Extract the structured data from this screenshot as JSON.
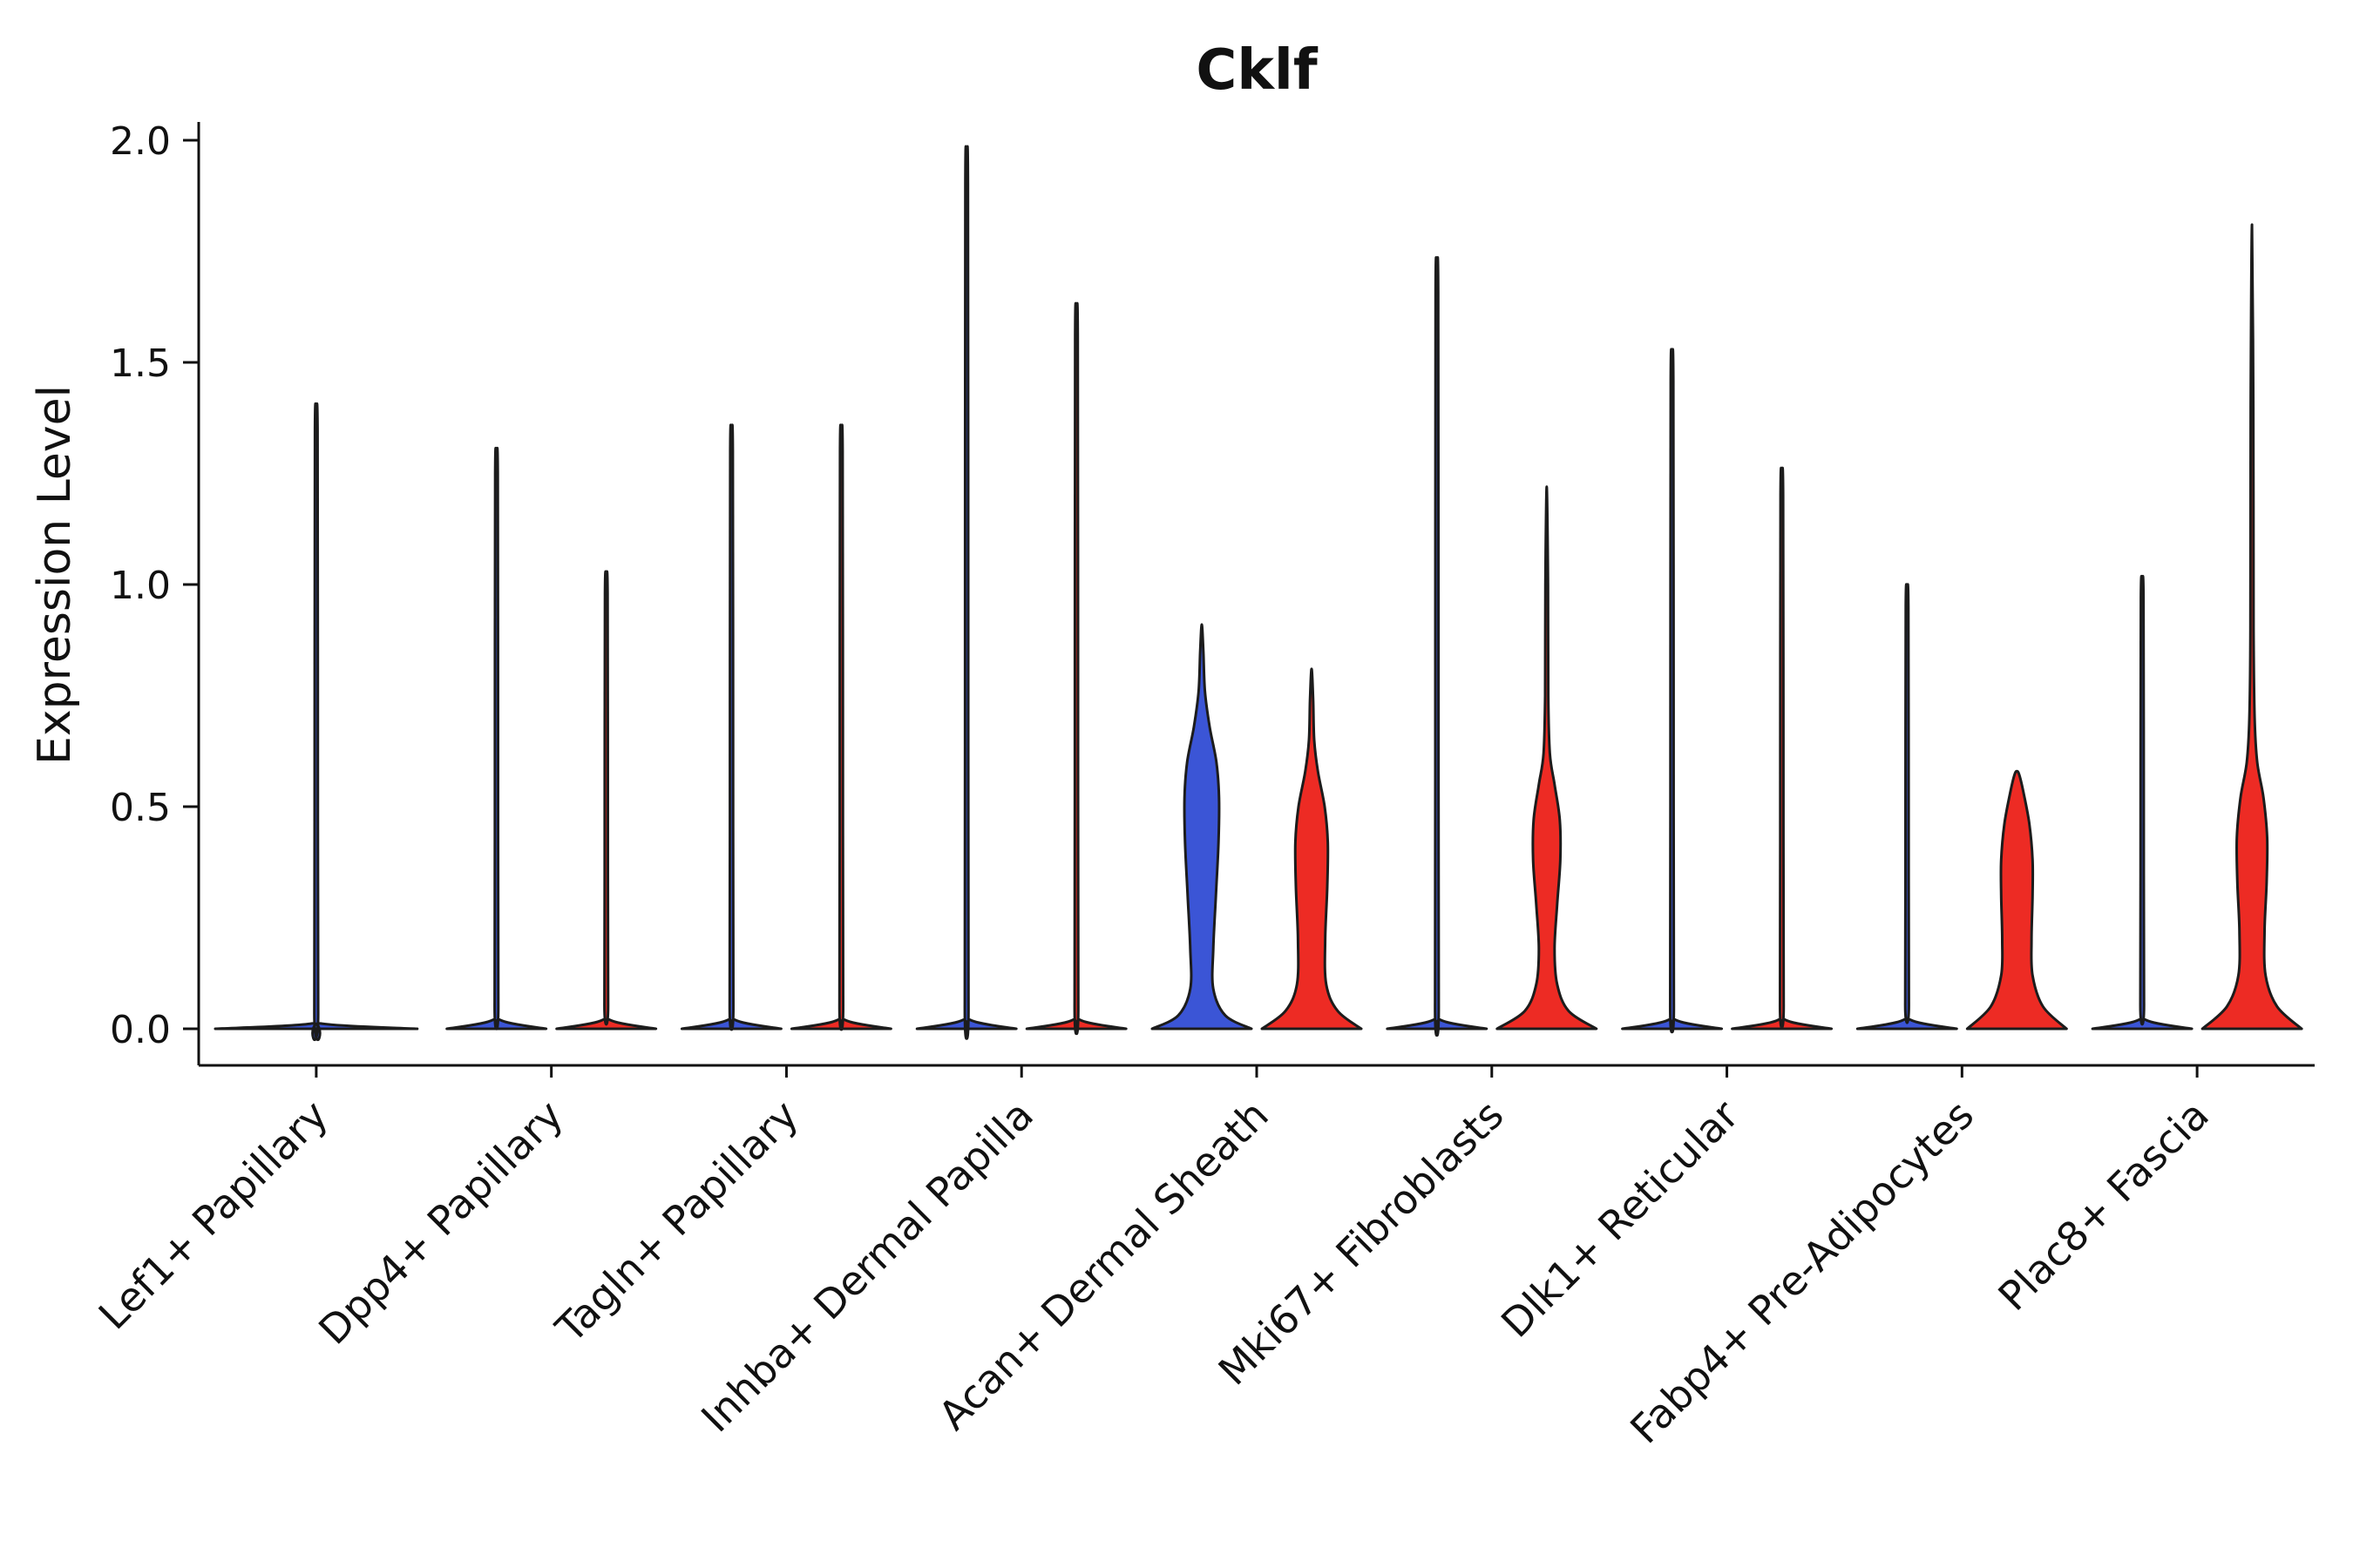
{
  "chart_data": {
    "type": "violin",
    "title": "Cklf",
    "ylabel": "Expression Level",
    "xlabel": "",
    "ylim": [
      -0.08,
      2.04
    ],
    "grid": false,
    "legend": null,
    "yticks": [
      0.0,
      0.5,
      1.0,
      1.5,
      2.0
    ],
    "ytick_labels": [
      "0.0",
      "0.5",
      "1.0",
      "1.5",
      "2.0"
    ],
    "categories": [
      "Lef1+ Papillary",
      "Dpp4+ Papillary",
      "Tagln+ Papillary",
      "Inhba+ Dermal Papilla",
      "Acan+ Dermal Sheath",
      "Mki67+ Fibroblasts",
      "Dlk1+ Reticular",
      "Fabp4+ Pre-Adipocytes",
      "Plac8+ Fascia"
    ],
    "colors": {
      "blue": "#3b55d6",
      "red": "#ed2b24",
      "outline": "#1c1c1c",
      "axis": "#111111"
    },
    "violins": [
      {
        "category": 0,
        "category_label": "Lef1+ Papillary",
        "slot": "full",
        "color": "blue",
        "max": 1.39,
        "profile": [
          [
            0,
            0.95
          ],
          [
            0.012,
            0.04
          ],
          [
            0.04,
            0.018
          ],
          [
            0.8,
            0.015
          ],
          [
            1.35,
            0.012
          ],
          [
            1.39,
            0
          ]
        ]
      },
      {
        "category": 1,
        "category_label": "Dpp4+ Papillary",
        "slot": "left",
        "color": "blue",
        "max": 1.29,
        "profile": [
          [
            0,
            0.95
          ],
          [
            0.02,
            0.07
          ],
          [
            0.06,
            0.035
          ],
          [
            0.7,
            0.03
          ],
          [
            1.25,
            0.025
          ],
          [
            1.29,
            0
          ]
        ]
      },
      {
        "category": 1,
        "category_label": "Dpp4+ Papillary",
        "slot": "right",
        "color": "red",
        "max": 1.02,
        "profile": [
          [
            0,
            0.95
          ],
          [
            0.02,
            0.07
          ],
          [
            0.06,
            0.035
          ],
          [
            0.55,
            0.03
          ],
          [
            0.98,
            0.025
          ],
          [
            1.02,
            0
          ]
        ]
      },
      {
        "category": 2,
        "category_label": "Tagln+ Papillary",
        "slot": "left",
        "color": "blue",
        "max": 1.34,
        "profile": [
          [
            0,
            0.95
          ],
          [
            0.02,
            0.07
          ],
          [
            0.06,
            0.035
          ],
          [
            0.72,
            0.03
          ],
          [
            1.3,
            0.025
          ],
          [
            1.34,
            0
          ]
        ]
      },
      {
        "category": 2,
        "category_label": "Tagln+ Papillary",
        "slot": "right",
        "color": "red",
        "max": 1.34,
        "profile": [
          [
            0,
            0.95
          ],
          [
            0.02,
            0.07
          ],
          [
            0.06,
            0.035
          ],
          [
            0.72,
            0.03
          ],
          [
            1.3,
            0.025
          ],
          [
            1.34,
            0
          ]
        ]
      },
      {
        "category": 3,
        "category_label": "Inhba+ Dermal Papilla",
        "slot": "left",
        "color": "blue",
        "max": 1.95,
        "profile": [
          [
            0,
            0.95
          ],
          [
            0.02,
            0.07
          ],
          [
            0.06,
            0.035
          ],
          [
            1.0,
            0.03
          ],
          [
            1.9,
            0.025
          ],
          [
            1.95,
            0
          ]
        ]
      },
      {
        "category": 3,
        "category_label": "Inhba+ Dermal Papilla",
        "slot": "right",
        "color": "red",
        "max": 1.61,
        "profile": [
          [
            0,
            0.95
          ],
          [
            0.02,
            0.07
          ],
          [
            0.06,
            0.035
          ],
          [
            0.85,
            0.03
          ],
          [
            1.56,
            0.025
          ],
          [
            1.61,
            0
          ]
        ]
      },
      {
        "category": 4,
        "category_label": "Acan+ Dermal Sheath",
        "slot": "left",
        "color": "blue",
        "max": 0.91,
        "profile": [
          [
            0,
            0.95
          ],
          [
            0.03,
            0.45
          ],
          [
            0.09,
            0.22
          ],
          [
            0.18,
            0.22
          ],
          [
            0.3,
            0.27
          ],
          [
            0.42,
            0.32
          ],
          [
            0.52,
            0.33
          ],
          [
            0.6,
            0.28
          ],
          [
            0.68,
            0.15
          ],
          [
            0.76,
            0.06
          ],
          [
            0.85,
            0.03
          ],
          [
            0.91,
            0
          ]
        ]
      },
      {
        "category": 4,
        "category_label": "Acan+ Dermal Sheath",
        "slot": "right",
        "color": "red",
        "max": 0.81,
        "profile": [
          [
            0,
            0.95
          ],
          [
            0.04,
            0.5
          ],
          [
            0.1,
            0.28
          ],
          [
            0.2,
            0.26
          ],
          [
            0.32,
            0.3
          ],
          [
            0.42,
            0.31
          ],
          [
            0.5,
            0.25
          ],
          [
            0.58,
            0.12
          ],
          [
            0.65,
            0.05
          ],
          [
            0.74,
            0.03
          ],
          [
            0.81,
            0
          ]
        ]
      },
      {
        "category": 5,
        "category_label": "Mki67+ Fibroblasts",
        "slot": "left",
        "color": "blue",
        "max": 1.71,
        "profile": [
          [
            0,
            0.95
          ],
          [
            0.02,
            0.07
          ],
          [
            0.06,
            0.035
          ],
          [
            0.9,
            0.03
          ],
          [
            1.66,
            0.025
          ],
          [
            1.71,
            0
          ]
        ]
      },
      {
        "category": 5,
        "category_label": "Mki67+ Fibroblasts",
        "slot": "right",
        "color": "red",
        "max": 1.22,
        "profile": [
          [
            0,
            0.95
          ],
          [
            0.04,
            0.42
          ],
          [
            0.1,
            0.2
          ],
          [
            0.18,
            0.15
          ],
          [
            0.28,
            0.2
          ],
          [
            0.38,
            0.26
          ],
          [
            0.47,
            0.25
          ],
          [
            0.55,
            0.15
          ],
          [
            0.62,
            0.06
          ],
          [
            0.75,
            0.03
          ],
          [
            1.0,
            0.025
          ],
          [
            1.22,
            0
          ]
        ]
      },
      {
        "category": 6,
        "category_label": "Dlk1+ Reticular",
        "slot": "left",
        "color": "blue",
        "max": 1.51,
        "profile": [
          [
            0,
            0.95
          ],
          [
            0.02,
            0.07
          ],
          [
            0.06,
            0.035
          ],
          [
            0.8,
            0.03
          ],
          [
            1.46,
            0.025
          ],
          [
            1.51,
            0
          ]
        ]
      },
      {
        "category": 6,
        "category_label": "Dlk1+ Reticular",
        "slot": "right",
        "color": "red",
        "max": 1.25,
        "profile": [
          [
            0,
            0.95
          ],
          [
            0.02,
            0.07
          ],
          [
            0.06,
            0.035
          ],
          [
            0.65,
            0.03
          ],
          [
            1.2,
            0.025
          ],
          [
            1.25,
            0
          ]
        ]
      },
      {
        "category": 7,
        "category_label": "Fabp4+ Pre-Adipocytes",
        "slot": "left",
        "color": "blue",
        "max": 0.99,
        "profile": [
          [
            0,
            0.95
          ],
          [
            0.02,
            0.07
          ],
          [
            0.06,
            0.035
          ],
          [
            0.5,
            0.03
          ],
          [
            0.95,
            0.025
          ],
          [
            0.99,
            0
          ]
        ]
      },
      {
        "category": 7,
        "category_label": "Fabp4+ Pre-Adipocytes",
        "slot": "right",
        "color": "red",
        "max": 0.58,
        "profile": [
          [
            0,
            0.95
          ],
          [
            0.05,
            0.5
          ],
          [
            0.12,
            0.3
          ],
          [
            0.2,
            0.28
          ],
          [
            0.3,
            0.3
          ],
          [
            0.38,
            0.3
          ],
          [
            0.46,
            0.24
          ],
          [
            0.53,
            0.13
          ],
          [
            0.57,
            0.05
          ],
          [
            0.58,
            0
          ]
        ]
      },
      {
        "category": 8,
        "category_label": "Plac8+ Fascia",
        "slot": "left",
        "color": "blue",
        "max": 1.01,
        "profile": [
          [
            0,
            0.95
          ],
          [
            0.02,
            0.07
          ],
          [
            0.06,
            0.035
          ],
          [
            0.55,
            0.03
          ],
          [
            0.97,
            0.025
          ],
          [
            1.01,
            0
          ]
        ]
      },
      {
        "category": 8,
        "category_label": "Plac8+ Fascia",
        "slot": "right",
        "color": "red",
        "max": 1.81,
        "profile": [
          [
            0,
            0.95
          ],
          [
            0.05,
            0.48
          ],
          [
            0.12,
            0.26
          ],
          [
            0.22,
            0.24
          ],
          [
            0.33,
            0.28
          ],
          [
            0.43,
            0.29
          ],
          [
            0.52,
            0.22
          ],
          [
            0.6,
            0.1
          ],
          [
            0.7,
            0.05
          ],
          [
            0.9,
            0.03
          ],
          [
            1.4,
            0.025
          ],
          [
            1.81,
            0
          ]
        ]
      }
    ]
  }
}
